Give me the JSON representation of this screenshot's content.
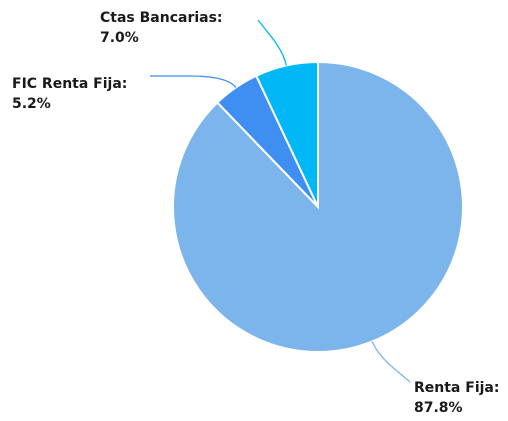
{
  "chart_data": {
    "type": "pie",
    "title": "",
    "slices": [
      {
        "label": "Renta Fija:",
        "value": 87.8,
        "value_text": "87.8%",
        "color": "#7cb5ec"
      },
      {
        "label": "FIC Renta Fija:",
        "value": 5.2,
        "value_text": "5.2%",
        "color": "#3f8ef2"
      },
      {
        "label": "Ctas Bancarias:",
        "value": 7.0,
        "value_text": "7.0%",
        "color": "#00b8f5"
      }
    ],
    "start": "12 o'clock",
    "direction": "clockwise",
    "legend": "none",
    "data_labels": "outside with leader lines"
  }
}
